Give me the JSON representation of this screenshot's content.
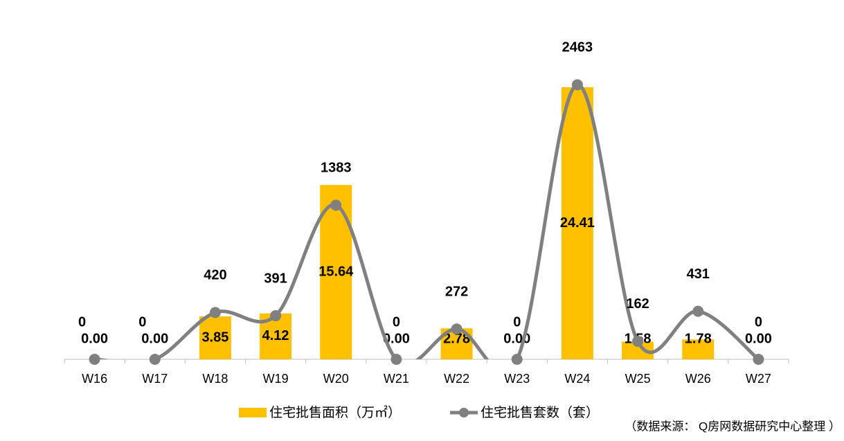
{
  "chart_data": {
    "type": "bar_line",
    "categories": [
      "W16",
      "W17",
      "W18",
      "W19",
      "W20",
      "W21",
      "W22",
      "W23",
      "W24",
      "W25",
      "W26",
      "W27"
    ],
    "ylim": [
      0,
      30
    ],
    "y2lim": [
      0,
      3000
    ],
    "series": [
      {
        "name": "住宅批售面积（万㎡）",
        "type": "bar",
        "color": "#FFC000",
        "values": [
          0,
          0,
          3.85,
          4.12,
          15.64,
          0,
          2.78,
          0,
          24.41,
          1.58,
          1.78,
          0
        ],
        "value_labels": [
          "0.00",
          "0.00",
          "3.85",
          "4.12",
          "15.64",
          "0.00",
          "2.78",
          "0.00",
          "24.41",
          "1.58",
          "1.78",
          "0.00"
        ]
      },
      {
        "name": "住宅批售套数（套）",
        "type": "line",
        "axis": "y2",
        "color": "#808080",
        "values": [
          0,
          0,
          420,
          391,
          1383,
          0,
          272,
          0,
          2463,
          162,
          431,
          0
        ]
      }
    ],
    "source": "（数据来源： Q房网数据研究中心整理 ）"
  }
}
